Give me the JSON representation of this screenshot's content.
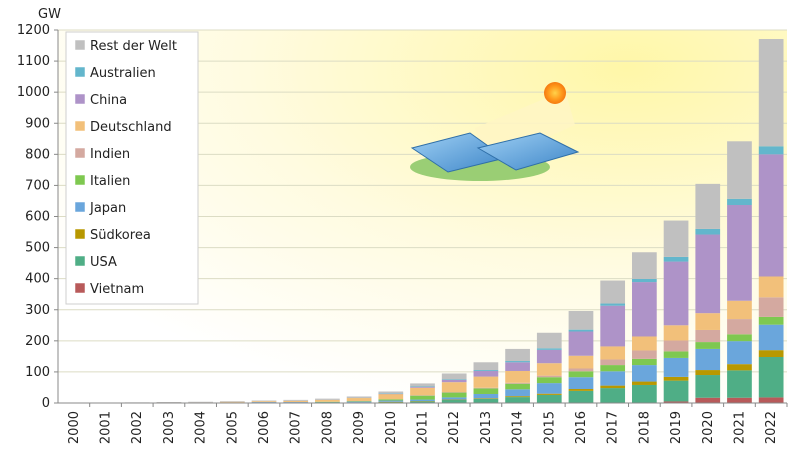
{
  "chart_data": {
    "type": "bar",
    "stacked": true,
    "ylabel": "GW",
    "ylim": [
      0,
      1200
    ],
    "yticks": [
      0,
      100,
      200,
      300,
      400,
      500,
      600,
      700,
      800,
      900,
      1000,
      1100,
      1200
    ],
    "grid": true,
    "legend_position": "top-left",
    "categories": [
      "2000",
      "2001",
      "2002",
      "2003",
      "2004",
      "2005",
      "2006",
      "2007",
      "2008",
      "2009",
      "2010",
      "2011",
      "2012",
      "2013",
      "2014",
      "2015",
      "2016",
      "2017",
      "2018",
      "2019",
      "2020",
      "2021",
      "2022"
    ],
    "series": [
      {
        "name": "Vietnam",
        "color": "#b85a5a",
        "values": [
          0,
          0,
          0,
          0,
          0,
          0,
          0,
          0,
          0,
          0,
          0,
          0,
          0,
          0,
          0,
          0,
          0,
          0,
          0,
          5,
          17,
          17,
          18
        ]
      },
      {
        "name": "USA",
        "color": "#4fae86",
        "values": [
          0,
          0,
          0,
          0,
          0,
          0,
          1,
          1,
          1,
          2,
          3,
          5,
          10,
          13,
          19,
          26,
          39,
          48,
          58,
          67,
          73,
          88,
          130
        ]
      },
      {
        "name": "Südkorea",
        "color": "#b89800",
        "values": [
          0,
          0,
          0,
          0,
          0,
          0,
          0,
          0,
          0,
          0,
          1,
          1,
          1,
          2,
          3,
          4,
          6,
          8,
          11,
          12,
          16,
          20,
          22
        ]
      },
      {
        "name": "Japan",
        "color": "#6aa6dc",
        "values": [
          0,
          0,
          1,
          1,
          1,
          2,
          2,
          2,
          2,
          3,
          4,
          5,
          7,
          14,
          22,
          34,
          38,
          46,
          53,
          61,
          68,
          74,
          82
        ]
      },
      {
        "name": "Italien",
        "color": "#7ec850",
        "values": [
          0,
          0,
          0,
          0,
          0,
          0,
          0,
          0,
          1,
          1,
          4,
          13,
          16,
          18,
          18,
          19,
          19,
          20,
          20,
          21,
          22,
          22,
          25
        ]
      },
      {
        "name": "Indien",
        "color": "#d4a9a0",
        "values": [
          0,
          0,
          0,
          0,
          0,
          0,
          0,
          0,
          0,
          0,
          0,
          1,
          1,
          2,
          3,
          5,
          9,
          18,
          27,
          35,
          39,
          49,
          63
        ]
      },
      {
        "name": "Deutschland",
        "color": "#f2c07a",
        "values": [
          0,
          0,
          0,
          1,
          1,
          2,
          3,
          4,
          6,
          10,
          17,
          24,
          32,
          36,
          38,
          40,
          41,
          42,
          45,
          49,
          54,
          59,
          67
        ]
      },
      {
        "name": "China",
        "color": "#ae93c8",
        "values": [
          0,
          0,
          0,
          0,
          0,
          0,
          0,
          0,
          0,
          0,
          1,
          3,
          7,
          18,
          28,
          43,
          78,
          131,
          175,
          205,
          253,
          308,
          393
        ]
      },
      {
        "name": "Australien",
        "color": "#63b6cc",
        "values": [
          0,
          0,
          0,
          0,
          0,
          0,
          0,
          0,
          0,
          0,
          1,
          1,
          2,
          3,
          4,
          5,
          6,
          7,
          10,
          15,
          18,
          20,
          26
        ]
      },
      {
        "name": "Rest der Welt",
        "color": "#c0c0c0",
        "values": [
          1,
          1,
          1,
          1,
          2,
          2,
          2,
          3,
          4,
          5,
          6,
          10,
          19,
          25,
          39,
          50,
          60,
          74,
          86,
          117,
          145,
          185,
          345
        ]
      }
    ]
  }
}
